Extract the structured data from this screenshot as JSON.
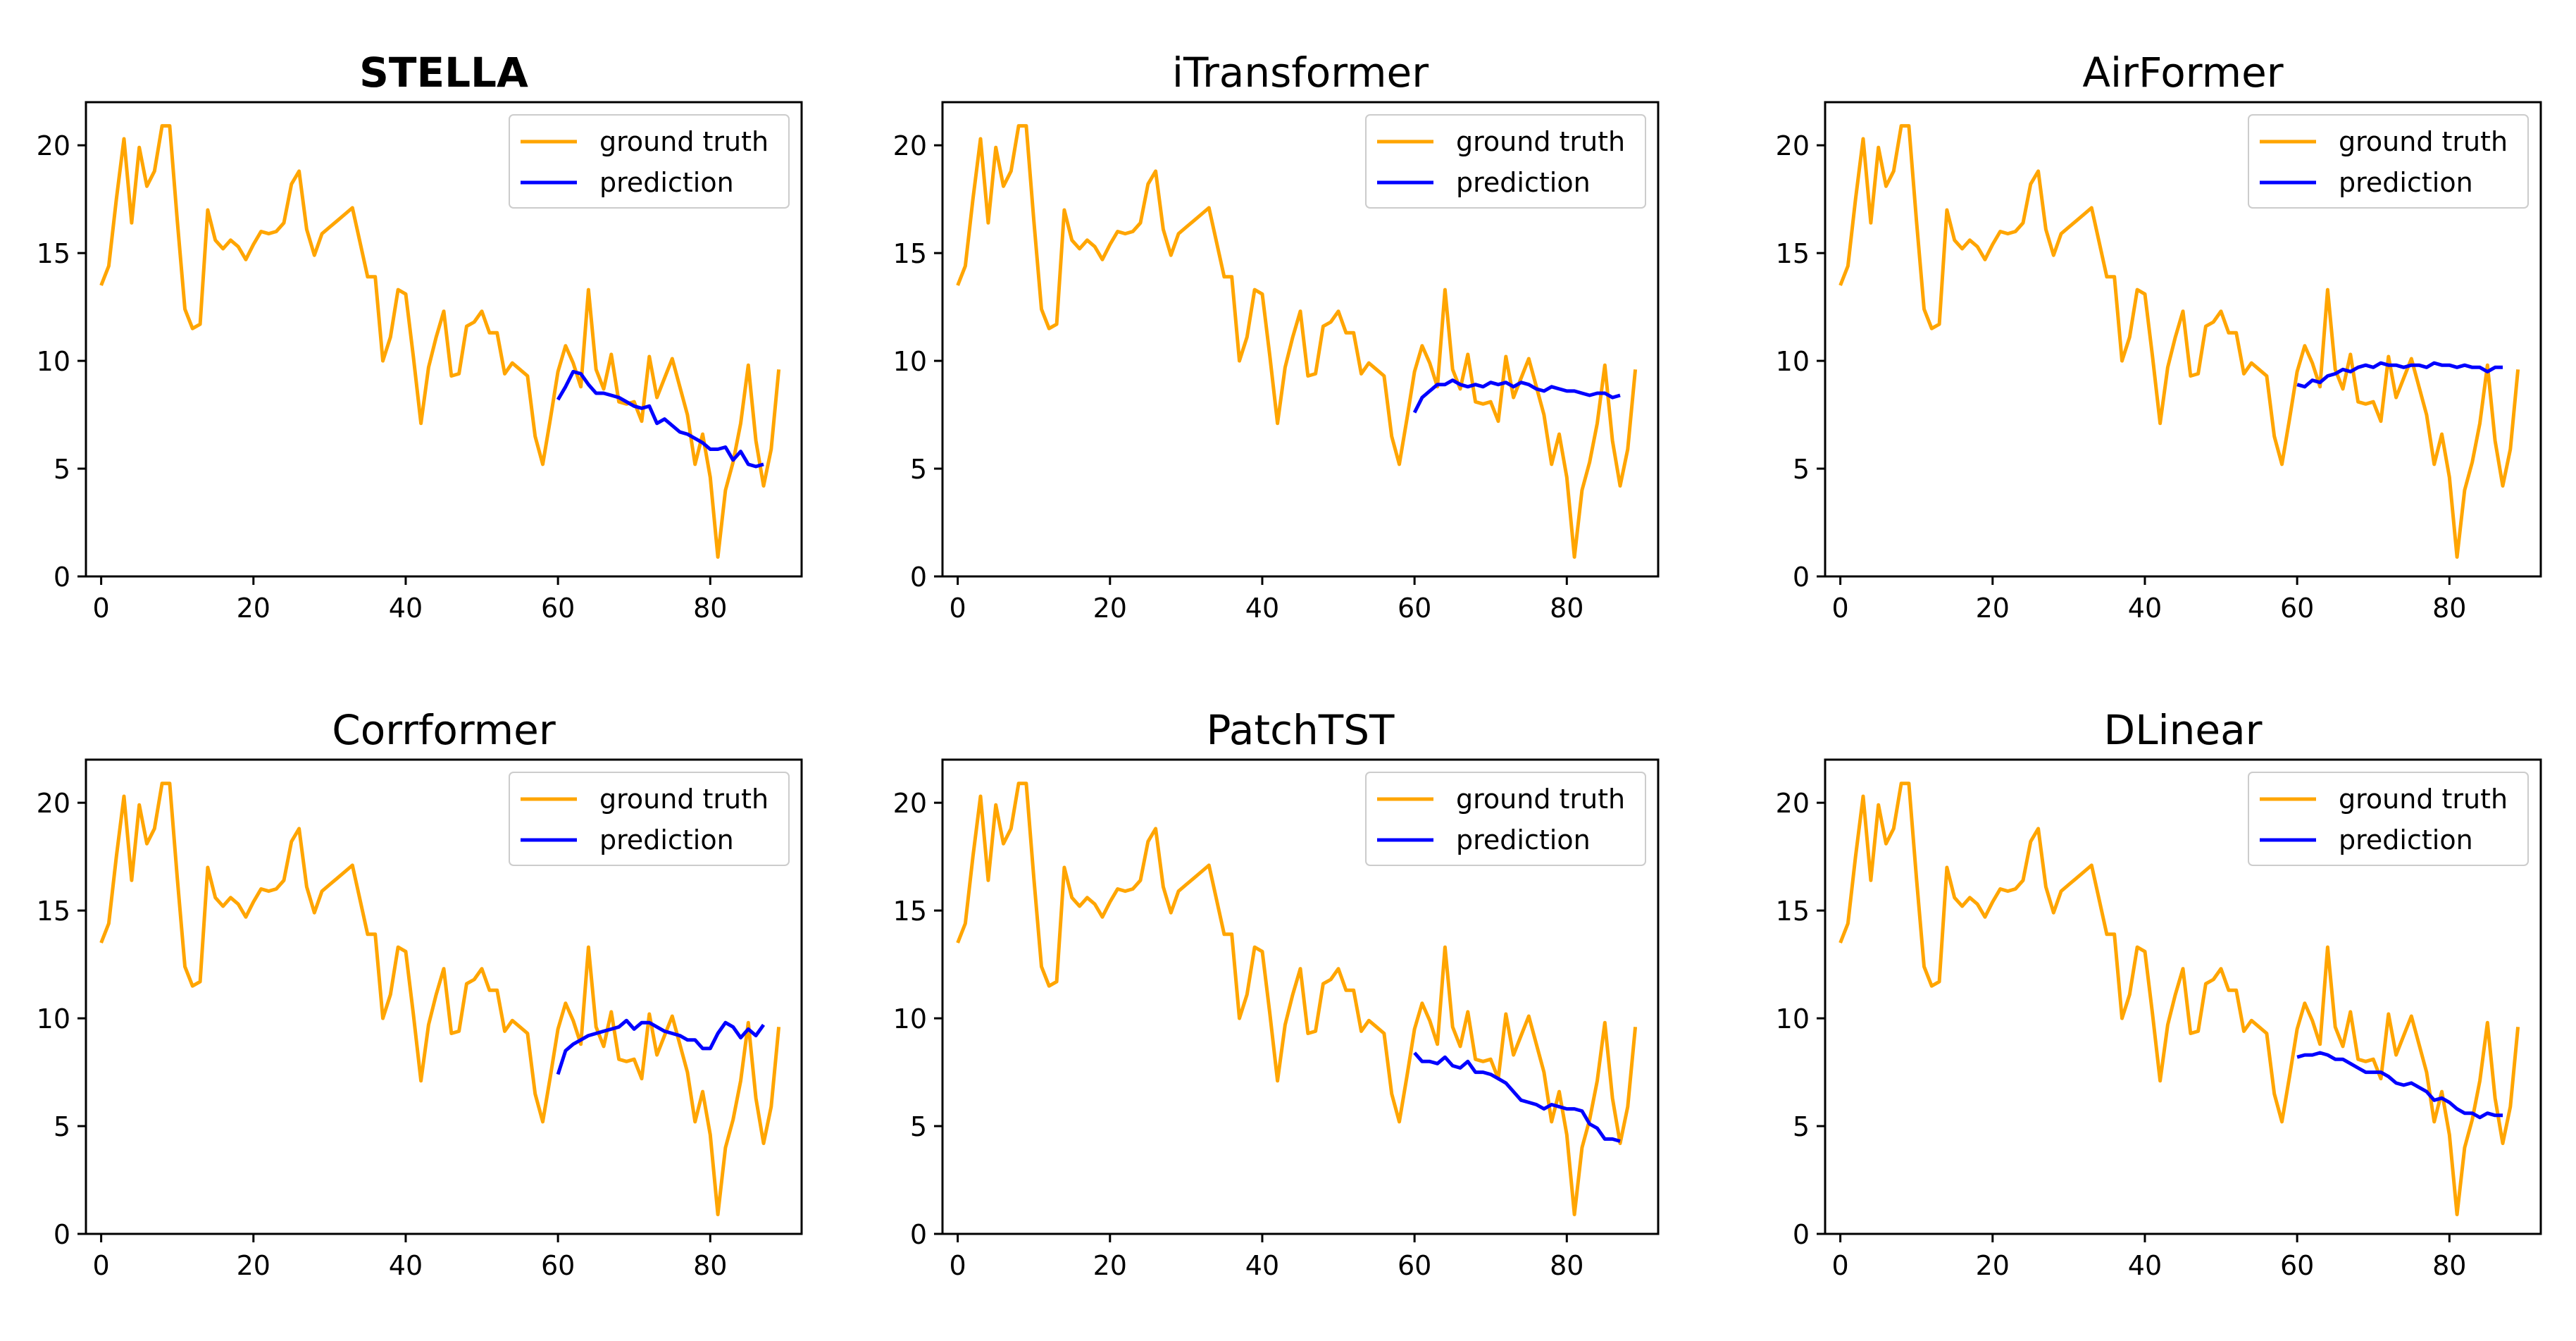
{
  "colors": {
    "ground_truth": "#ffa500",
    "prediction": "#0000ff",
    "axes": "#000000",
    "background": "#ffffff"
  },
  "chart_data": [
    {
      "type": "line",
      "title": "STELLA",
      "title_bold": true,
      "xlim": [
        -2,
        92
      ],
      "ylim": [
        0,
        22
      ],
      "xticks": [
        0,
        20,
        40,
        60,
        80
      ],
      "yticks": [
        0,
        5,
        10,
        15,
        20
      ],
      "xlabel": "",
      "ylabel": "",
      "legend_position": "upper right",
      "series": [
        {
          "name": "ground truth",
          "x_start": 0
        },
        {
          "name": "prediction",
          "x_start": 60,
          "values": [
            8.2,
            8.8,
            9.5,
            9.4,
            8.9,
            8.5,
            8.5,
            8.4,
            8.3,
            8.1,
            7.9,
            7.8,
            7.9,
            7.1,
            7.3,
            7.0,
            6.7,
            6.6,
            6.4,
            6.2,
            5.9,
            5.9,
            6.0,
            5.4,
            5.8,
            5.2,
            5.1,
            5.2
          ]
        }
      ]
    },
    {
      "type": "line",
      "title": "iTransformer",
      "title_bold": false,
      "xlim": [
        -2,
        92
      ],
      "ylim": [
        0,
        22
      ],
      "xticks": [
        0,
        20,
        40,
        60,
        80
      ],
      "yticks": [
        0,
        5,
        10,
        15,
        20
      ],
      "xlabel": "",
      "ylabel": "",
      "legend_position": "upper right",
      "series": [
        {
          "name": "ground truth",
          "x_start": 0
        },
        {
          "name": "prediction",
          "x_start": 60,
          "values": [
            7.6,
            8.3,
            8.6,
            8.9,
            8.9,
            9.1,
            8.9,
            8.8,
            8.9,
            8.8,
            9.0,
            8.9,
            9.0,
            8.8,
            9.0,
            8.9,
            8.7,
            8.6,
            8.8,
            8.7,
            8.6,
            8.6,
            8.5,
            8.4,
            8.5,
            8.5,
            8.3,
            8.4
          ]
        }
      ]
    },
    {
      "type": "line",
      "title": "AirFormer",
      "title_bold": false,
      "xlim": [
        -2,
        92
      ],
      "ylim": [
        0,
        22
      ],
      "xticks": [
        0,
        20,
        40,
        60,
        80
      ],
      "yticks": [
        0,
        5,
        10,
        15,
        20
      ],
      "xlabel": "",
      "ylabel": "",
      "legend_position": "upper right",
      "series": [
        {
          "name": "ground truth",
          "x_start": 0
        },
        {
          "name": "prediction",
          "x_start": 60,
          "values": [
            8.9,
            8.8,
            9.1,
            9.0,
            9.3,
            9.4,
            9.6,
            9.5,
            9.7,
            9.8,
            9.7,
            9.9,
            9.8,
            9.8,
            9.7,
            9.8,
            9.8,
            9.7,
            9.9,
            9.8,
            9.8,
            9.7,
            9.8,
            9.7,
            9.7,
            9.5,
            9.7,
            9.7
          ]
        }
      ]
    },
    {
      "type": "line",
      "title": "Corrformer",
      "title_bold": false,
      "xlim": [
        -2,
        92
      ],
      "ylim": [
        0,
        22
      ],
      "xticks": [
        0,
        20,
        40,
        60,
        80
      ],
      "yticks": [
        0,
        5,
        10,
        15,
        20
      ],
      "xlabel": "",
      "ylabel": "",
      "legend_position": "upper right",
      "series": [
        {
          "name": "ground truth",
          "x_start": 0
        },
        {
          "name": "prediction",
          "x_start": 60,
          "values": [
            7.4,
            8.5,
            8.8,
            9.0,
            9.2,
            9.3,
            9.4,
            9.5,
            9.6,
            9.9,
            9.5,
            9.8,
            9.8,
            9.6,
            9.4,
            9.3,
            9.2,
            9.0,
            9.0,
            8.6,
            8.6,
            9.3,
            9.8,
            9.6,
            9.1,
            9.5,
            9.2,
            9.7
          ]
        }
      ]
    },
    {
      "type": "line",
      "title": "PatchTST",
      "title_bold": false,
      "xlim": [
        -2,
        92
      ],
      "ylim": [
        0,
        22
      ],
      "xticks": [
        0,
        20,
        40,
        60,
        80
      ],
      "yticks": [
        0,
        5,
        10,
        15,
        20
      ],
      "xlabel": "",
      "ylabel": "",
      "legend_position": "upper right",
      "series": [
        {
          "name": "ground truth",
          "x_start": 0
        },
        {
          "name": "prediction",
          "x_start": 60,
          "values": [
            8.4,
            8.0,
            8.0,
            7.9,
            8.2,
            7.8,
            7.7,
            8.0,
            7.5,
            7.5,
            7.4,
            7.2,
            7.0,
            6.6,
            6.2,
            6.1,
            6.0,
            5.8,
            6.0,
            5.9,
            5.8,
            5.8,
            5.7,
            5.1,
            4.9,
            4.4,
            4.4,
            4.3
          ]
        }
      ]
    },
    {
      "type": "line",
      "title": "DLinear",
      "title_bold": false,
      "xlim": [
        -2,
        92
      ],
      "ylim": [
        0,
        22
      ],
      "xticks": [
        0,
        20,
        40,
        60,
        80
      ],
      "yticks": [
        0,
        5,
        10,
        15,
        20
      ],
      "xlabel": "",
      "ylabel": "",
      "legend_position": "upper right",
      "series": [
        {
          "name": "ground truth",
          "x_start": 0
        },
        {
          "name": "prediction",
          "x_start": 60,
          "values": [
            8.2,
            8.3,
            8.3,
            8.4,
            8.3,
            8.1,
            8.1,
            7.9,
            7.7,
            7.5,
            7.5,
            7.5,
            7.3,
            7.0,
            6.9,
            7.0,
            6.8,
            6.6,
            6.2,
            6.3,
            6.1,
            5.8,
            5.6,
            5.6,
            5.4,
            5.6,
            5.5,
            5.5
          ]
        }
      ]
    }
  ],
  "ground_truth_values": [
    13.5,
    14.4,
    17.5,
    20.3,
    16.4,
    19.9,
    18.1,
    18.8,
    20.9,
    20.9,
    16.5,
    12.4,
    11.5,
    11.7,
    17.0,
    15.6,
    15.2,
    15.6,
    15.3,
    14.7,
    15.4,
    16.0,
    15.9,
    16.0,
    16.4,
    18.2,
    18.8,
    16.1,
    14.9,
    15.9,
    16.2,
    16.5,
    16.8,
    17.1,
    15.5,
    13.9,
    13.9,
    10.0,
    11.1,
    13.3,
    13.1,
    10.2,
    7.1,
    9.7,
    11.1,
    12.3,
    9.3,
    9.4,
    11.6,
    11.8,
    12.3,
    11.3,
    11.3,
    9.4,
    9.9,
    9.6,
    9.3,
    6.5,
    5.2,
    7.3,
    9.5,
    10.7,
    9.9,
    8.8,
    13.3,
    9.6,
    8.7,
    10.3,
    8.1,
    8.0,
    8.1,
    7.2,
    10.2,
    8.3,
    9.2,
    10.1,
    8.8,
    7.5,
    5.2,
    6.6,
    4.6,
    0.9,
    4.0,
    5.3,
    7.1,
    9.8,
    6.3,
    4.2,
    5.9,
    9.6
  ]
}
